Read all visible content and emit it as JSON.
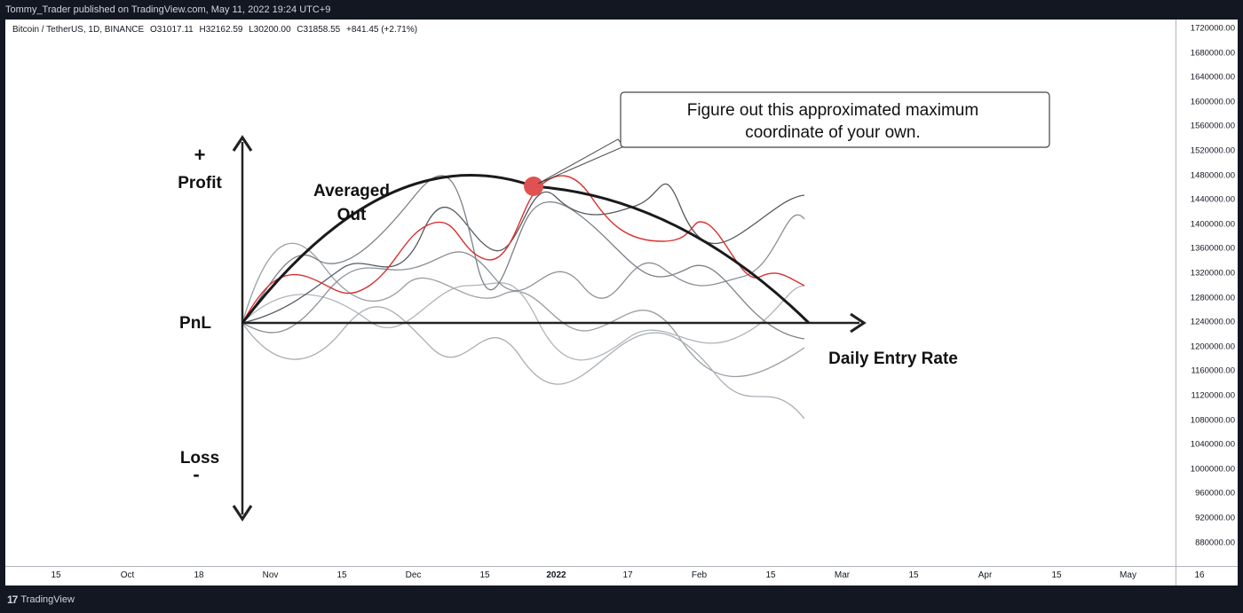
{
  "publish_bar": {
    "text": "Tommy_Trader published on TradingView.com, May 11, 2022 19:24 UTC+9"
  },
  "legend": {
    "symbol": "Bitcoin / TetherUS, 1D, BINANCE",
    "open": "O31017.11",
    "high": "H32162.59",
    "low": "L30200.00",
    "close": "C31858.55",
    "change": "+841.45 (+2.71%)"
  },
  "price_axis": {
    "labels": [
      "1720000.00",
      "1680000.00",
      "1640000.00",
      "1600000.00",
      "1560000.00",
      "1520000.00",
      "1480000.00",
      "1440000.00",
      "1400000.00",
      "1360000.00",
      "1320000.00",
      "1280000.00",
      "1240000.00",
      "1200000.00",
      "1160000.00",
      "1120000.00",
      "1080000.00",
      "1040000.00",
      "1000000.00",
      "960000.00",
      "920000.00",
      "880000.00"
    ]
  },
  "time_axis": {
    "labels": [
      {
        "text": "15",
        "bold": false
      },
      {
        "text": "Oct",
        "bold": false
      },
      {
        "text": "18",
        "bold": false
      },
      {
        "text": "Nov",
        "bold": false
      },
      {
        "text": "15",
        "bold": false
      },
      {
        "text": "Dec",
        "bold": false
      },
      {
        "text": "15",
        "bold": false
      },
      {
        "text": "2022",
        "bold": true
      },
      {
        "text": "17",
        "bold": false
      },
      {
        "text": "Feb",
        "bold": false
      },
      {
        "text": "15",
        "bold": false
      },
      {
        "text": "Mar",
        "bold": false
      },
      {
        "text": "15",
        "bold": false
      },
      {
        "text": "Apr",
        "bold": false
      },
      {
        "text": "15",
        "bold": false
      },
      {
        "text": "May",
        "bold": false
      },
      {
        "text": "16",
        "bold": false
      }
    ]
  },
  "diagram": {
    "plus_sign": "+",
    "profit_label": "Profit",
    "pnl_label": "PnL",
    "loss_label": "Loss",
    "minus_sign": "-",
    "x_axis_label": "Daily Entry Rate",
    "curve_label_line1": "Averaged",
    "curve_label_line2": "Out",
    "callout_line1": "Figure out this approximated maximum",
    "callout_line2": "coordinate of your own.",
    "peak_color": "#e05252",
    "highlight_color": "#d93030"
  },
  "footer": {
    "brand_icon": "tradingview-logo-icon",
    "brand_text": "TradingView"
  },
  "chart_data": {
    "type": "line",
    "title": "",
    "xlabel": "Daily Entry Rate",
    "ylabel": "PnL",
    "series": [
      {
        "values": [
          0,
          3,
          5,
          6.5,
          7.5,
          8,
          8.4,
          8.5,
          8.3,
          7.6,
          6.5,
          5,
          3,
          0
        ]
      },
      {
        "values": [
          0,
          2,
          1.5,
          3,
          4.5,
          4,
          5.5,
          8,
          6,
          4,
          5,
          4,
          3,
          2
        ]
      },
      {
        "values": [
          0,
          3,
          4,
          2,
          6,
          4,
          5,
          6,
          4,
          3,
          5,
          3,
          4,
          6
        ]
      },
      {
        "values": [
          0,
          -1,
          1,
          3,
          2,
          1,
          3,
          2,
          1.5,
          3,
          0,
          2,
          1,
          -1
        ]
      },
      {
        "values": [
          0,
          1,
          -1,
          0,
          1,
          2,
          3,
          1,
          0,
          -1,
          0,
          1,
          0,
          1
        ]
      },
      {
        "values": [
          0,
          -2,
          -1,
          0,
          -1,
          1,
          0,
          -2,
          -1,
          -3,
          -2,
          -3,
          -2,
          -4
        ]
      }
    ],
    "annotations": [
      "Figure out this approximated maximum coordinate of your own.",
      "Averaged Out"
    ]
  }
}
